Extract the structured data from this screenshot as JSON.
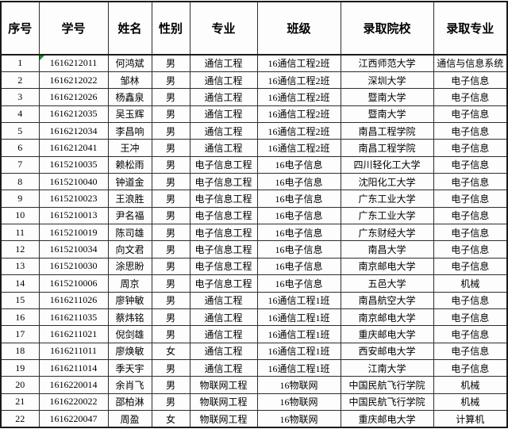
{
  "table": {
    "headers": [
      "序号",
      "学号",
      "姓名",
      "性别",
      "专业",
      "班级",
      "录取院校",
      "录取专业"
    ],
    "column_keys": [
      "index",
      "student-id",
      "name",
      "gender",
      "major",
      "class",
      "admission-school",
      "admission-major"
    ],
    "rows": [
      [
        "1",
        "1616212011",
        "何鸿斌",
        "男",
        "通信工程",
        "16通信工程2班",
        "江西师范大学",
        "通信与信息系统"
      ],
      [
        "2",
        "1616212022",
        "邹林",
        "男",
        "通信工程",
        "16通信工程2班",
        "深圳大学",
        "电子信息"
      ],
      [
        "3",
        "1616212026",
        "杨鑫泉",
        "男",
        "通信工程",
        "16通信工程2班",
        "暨南大学",
        "电子信息"
      ],
      [
        "4",
        "1616212035",
        "吴玉辉",
        "男",
        "通信工程",
        "16通信工程2班",
        "暨南大学",
        "电子信息"
      ],
      [
        "5",
        "1616212034",
        "李昌响",
        "男",
        "通信工程",
        "16通信工程2班",
        "南昌工程学院",
        "电子信息"
      ],
      [
        "6",
        "1616212041",
        "王冲",
        "男",
        "通信工程",
        "16通信工程2班",
        "南昌工程学院",
        "电子信息"
      ],
      [
        "7",
        "1615210035",
        "赖松雨",
        "男",
        "电子信息工程",
        "16电子信息",
        "四川轻化工大学",
        "电子信息"
      ],
      [
        "8",
        "1615210040",
        "钟道金",
        "男",
        "电子信息工程",
        "16电子信息",
        "沈阳化工大学",
        "电子信息"
      ],
      [
        "9",
        "1615210023",
        "王浪胜",
        "男",
        "电子信息工程",
        "16电子信息",
        "广东工业大学",
        "电子信息"
      ],
      [
        "10",
        "1615210013",
        "尹名福",
        "男",
        "电子信息工程",
        "16电子信息",
        "广东工业大学",
        "电子信息"
      ],
      [
        "11",
        "1615210019",
        "陈司雄",
        "男",
        "电子信息工程",
        "16电子信息",
        "广东财经大学",
        "电子信息"
      ],
      [
        "12",
        "1615210034",
        "向文君",
        "男",
        "电子信息工程",
        "16电子信息",
        "南昌大学",
        "电子信息"
      ],
      [
        "13",
        "1615210030",
        "涂思盼",
        "男",
        "电子信息工程",
        "16电子信息",
        "南京邮电大学",
        "电子信息"
      ],
      [
        "14",
        "1615210006",
        "周京",
        "男",
        "电子信息工程",
        "16电子信息",
        "五邑大学",
        "机械"
      ],
      [
        "15",
        "1616211026",
        "廖钟敏",
        "男",
        "通信工程",
        "16通信工程1班",
        "南昌航空大学",
        "电子信息"
      ],
      [
        "16",
        "1616211035",
        "蔡炜铭",
        "男",
        "通信工程",
        "16通信工程1班",
        "南京邮电大学",
        "电子信息"
      ],
      [
        "17",
        "1616211021",
        "倪剑雄",
        "男",
        "通信工程",
        "16通信工程1班",
        "重庆邮电大学",
        "电子信息"
      ],
      [
        "18",
        "1616211011",
        "廖焕敏",
        "女",
        "通信工程",
        "16通信工程1班",
        "西安邮电大学",
        "电子信息"
      ],
      [
        "19",
        "1616211014",
        "季天宇",
        "男",
        "通信工程",
        "16通信工程1班",
        "江南大学",
        "电子信息"
      ],
      [
        "20",
        "1616220014",
        "余肖飞",
        "男",
        "物联网工程",
        "16物联网",
        "中国民航飞行学院",
        "机械"
      ],
      [
        "21",
        "1616220022",
        "邵柏淋",
        "男",
        "物联网工程",
        "16物联网",
        "中国民航飞行学院",
        "机械"
      ],
      [
        "22",
        "1616220047",
        "周盈",
        "女",
        "物联网工程",
        "16物联网",
        "重庆邮电大学",
        "计算机"
      ]
    ],
    "error_marker": {
      "row_index": 0,
      "col_index": 1,
      "color": "#0a9a1e",
      "meaning": "number-stored-as-text-indicator"
    }
  },
  "colors": {
    "background": "#fdfdfd",
    "grid_line": "#2d2d2d",
    "outer_border": "#1a1a1a",
    "text": "#000000",
    "marker_green": "#0a9a1e"
  }
}
